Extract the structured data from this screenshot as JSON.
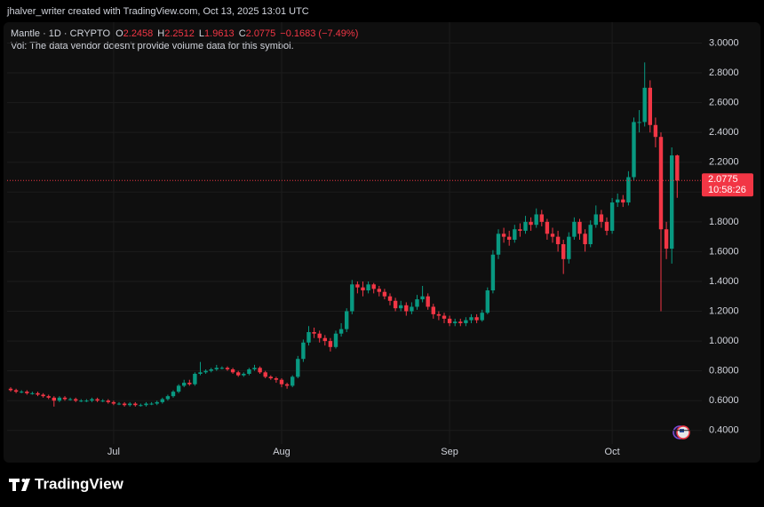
{
  "header": {
    "credit": "jhalver_writer created with TradingView.com, Oct 13, 2025 13:01 UTC"
  },
  "chart_data": {
    "type": "candlestick",
    "symbol": "Mantle · 1D · CRYPTO",
    "legend_labels": [
      "O",
      "H",
      "L",
      "C"
    ],
    "change_label": "−0.1683 (−7.49%)",
    "note": "Vol: The data vendor doesn't provide volume data for this symbol.",
    "countdown": "10:58:26",
    "categories": [
      null,
      null,
      null,
      null,
      null,
      null,
      null,
      null,
      null,
      null,
      null,
      null,
      null,
      null,
      null,
      null,
      null,
      null,
      null,
      "Jul",
      null,
      null,
      null,
      null,
      null,
      null,
      null,
      null,
      null,
      null,
      null,
      null,
      null,
      null,
      null,
      null,
      null,
      null,
      null,
      null,
      null,
      null,
      null,
      null,
      null,
      null,
      null,
      null,
      null,
      null,
      "Aug",
      null,
      null,
      null,
      null,
      null,
      null,
      null,
      null,
      null,
      null,
      null,
      null,
      null,
      null,
      null,
      null,
      null,
      null,
      null,
      null,
      null,
      null,
      null,
      null,
      null,
      null,
      null,
      null,
      null,
      null,
      "Sep",
      null,
      null,
      null,
      null,
      null,
      null,
      null,
      null,
      null,
      null,
      null,
      null,
      null,
      null,
      null,
      null,
      null,
      null,
      null,
      null,
      null,
      null,
      null,
      null,
      null,
      null,
      null,
      null,
      null,
      "Oct",
      null,
      null,
      null,
      null,
      null,
      null,
      null,
      null,
      null,
      null,
      null,
      null
    ],
    "open": [
      0.68,
      0.67,
      0.66,
      0.66,
      0.65,
      0.65,
      0.64,
      0.63,
      0.62,
      0.6,
      0.62,
      0.61,
      0.61,
      0.6,
      0.6,
      0.6,
      0.61,
      0.6,
      0.6,
      0.59,
      0.58,
      0.58,
      0.57,
      0.58,
      0.57,
      0.57,
      0.58,
      0.58,
      0.59,
      0.61,
      0.63,
      0.66,
      0.7,
      0.72,
      0.71,
      0.78,
      0.79,
      0.8,
      0.81,
      0.82,
      0.82,
      0.81,
      0.79,
      0.77,
      0.78,
      0.81,
      0.82,
      0.79,
      0.76,
      0.75,
      0.74,
      0.71,
      0.7,
      0.76,
      0.88,
      0.99,
      1.06,
      1.05,
      1.02,
      1.0,
      0.96,
      1.05,
      1.08,
      1.2,
      1.38,
      1.36,
      1.34,
      1.38,
      1.35,
      1.33,
      1.3,
      1.27,
      1.22,
      1.24,
      1.2,
      1.23,
      1.28,
      1.3,
      1.23,
      1.18,
      1.17,
      1.15,
      1.12,
      1.13,
      1.12,
      1.14,
      1.16,
      1.14,
      1.19,
      1.34,
      1.58,
      1.72,
      1.7,
      1.68,
      1.75,
      1.74,
      1.8,
      1.78,
      1.85,
      1.8,
      1.72,
      1.7,
      1.65,
      1.55,
      1.7,
      1.8,
      1.72,
      1.65,
      1.78,
      1.85,
      1.8,
      1.74,
      1.93,
      1.95,
      1.93,
      2.1,
      2.47,
      2.47,
      2.7,
      2.45,
      2.37,
      1.75,
      1.62,
      2.2458
    ],
    "high": [
      0.69,
      0.68,
      0.67,
      0.67,
      0.66,
      0.66,
      0.65,
      0.64,
      0.63,
      0.63,
      0.63,
      0.62,
      0.62,
      0.61,
      0.61,
      0.62,
      0.62,
      0.61,
      0.61,
      0.6,
      0.59,
      0.59,
      0.59,
      0.59,
      0.58,
      0.59,
      0.59,
      0.6,
      0.62,
      0.64,
      0.67,
      0.71,
      0.74,
      0.74,
      0.79,
      0.86,
      0.81,
      0.82,
      0.84,
      0.83,
      0.83,
      0.82,
      0.8,
      0.79,
      0.82,
      0.84,
      0.83,
      0.8,
      0.77,
      0.76,
      0.75,
      0.72,
      0.77,
      0.9,
      1.01,
      1.1,
      1.09,
      1.07,
      1.04,
      1.02,
      1.07,
      1.12,
      1.22,
      1.41,
      1.4,
      1.4,
      1.4,
      1.39,
      1.37,
      1.35,
      1.32,
      1.29,
      1.27,
      1.26,
      1.26,
      1.31,
      1.37,
      1.32,
      1.25,
      1.2,
      1.19,
      1.17,
      1.15,
      1.15,
      1.16,
      1.18,
      1.18,
      1.21,
      1.36,
      1.61,
      1.75,
      1.76,
      1.74,
      1.78,
      1.79,
      1.84,
      1.83,
      1.89,
      1.88,
      1.82,
      1.76,
      1.74,
      1.68,
      1.73,
      1.83,
      1.82,
      1.75,
      1.81,
      1.91,
      1.88,
      1.83,
      1.96,
      1.99,
      1.98,
      2.14,
      2.5,
      2.55,
      2.87,
      2.75,
      2.5,
      2.4,
      1.8,
      2.3,
      2.2512
    ],
    "low": [
      0.66,
      0.65,
      0.65,
      0.64,
      0.64,
      0.63,
      0.62,
      0.61,
      0.56,
      0.59,
      0.6,
      0.6,
      0.59,
      0.59,
      0.59,
      0.59,
      0.59,
      0.59,
      0.58,
      0.57,
      0.57,
      0.56,
      0.56,
      0.56,
      0.56,
      0.56,
      0.57,
      0.57,
      0.58,
      0.6,
      0.62,
      0.65,
      0.69,
      0.7,
      0.7,
      0.77,
      0.78,
      0.79,
      0.8,
      0.81,
      0.8,
      0.78,
      0.76,
      0.76,
      0.77,
      0.8,
      0.78,
      0.75,
      0.74,
      0.72,
      0.69,
      0.68,
      0.69,
      0.75,
      0.86,
      0.97,
      1.02,
      0.99,
      0.97,
      0.93,
      0.95,
      1.03,
      1.06,
      1.18,
      1.32,
      1.3,
      1.32,
      1.32,
      1.3,
      1.28,
      1.24,
      1.2,
      1.2,
      1.17,
      1.18,
      1.21,
      1.26,
      1.21,
      1.15,
      1.14,
      1.12,
      1.1,
      1.1,
      1.1,
      1.1,
      1.12,
      1.12,
      1.13,
      1.18,
      1.32,
      1.55,
      1.66,
      1.64,
      1.66,
      1.7,
      1.72,
      1.74,
      1.76,
      1.77,
      1.68,
      1.66,
      1.6,
      1.45,
      1.52,
      1.68,
      1.68,
      1.6,
      1.63,
      1.76,
      1.76,
      1.71,
      1.72,
      1.9,
      1.9,
      1.91,
      2.08,
      2.4,
      2.44,
      2.4,
      2.3,
      1.2,
      1.55,
      1.52,
      1.9613
    ],
    "close": [
      0.67,
      0.66,
      0.66,
      0.65,
      0.65,
      0.64,
      0.63,
      0.62,
      0.6,
      0.62,
      0.61,
      0.61,
      0.6,
      0.6,
      0.6,
      0.61,
      0.6,
      0.6,
      0.59,
      0.58,
      0.58,
      0.57,
      0.58,
      0.57,
      0.57,
      0.58,
      0.58,
      0.59,
      0.61,
      0.63,
      0.66,
      0.7,
      0.72,
      0.71,
      0.78,
      0.79,
      0.8,
      0.81,
      0.82,
      0.82,
      0.81,
      0.79,
      0.77,
      0.78,
      0.81,
      0.82,
      0.79,
      0.76,
      0.75,
      0.74,
      0.71,
      0.7,
      0.76,
      0.88,
      0.99,
      1.06,
      1.05,
      1.02,
      1.0,
      0.96,
      1.05,
      1.08,
      1.2,
      1.38,
      1.36,
      1.34,
      1.38,
      1.35,
      1.33,
      1.3,
      1.27,
      1.22,
      1.24,
      1.2,
      1.23,
      1.28,
      1.3,
      1.23,
      1.18,
      1.17,
      1.15,
      1.12,
      1.13,
      1.12,
      1.14,
      1.16,
      1.14,
      1.19,
      1.34,
      1.58,
      1.72,
      1.7,
      1.68,
      1.75,
      1.74,
      1.8,
      1.78,
      1.85,
      1.8,
      1.72,
      1.7,
      1.65,
      1.55,
      1.7,
      1.8,
      1.72,
      1.65,
      1.78,
      1.85,
      1.8,
      1.74,
      1.93,
      1.95,
      1.93,
      2.1,
      2.47,
      2.47,
      2.7,
      2.45,
      2.37,
      1.75,
      1.62,
      2.2458,
      2.0775
    ],
    "up_color": "#089981",
    "down_color": "#f23645",
    "ylim": [
      0.19,
      3.14
    ],
    "yticks": [
      {
        "value": 0.4,
        "label": "0.4000"
      },
      {
        "value": 0.6,
        "label": "0.6000"
      },
      {
        "value": 0.8,
        "label": "0.8000"
      },
      {
        "value": 1,
        "label": "1.0000"
      },
      {
        "value": 1.2,
        "label": "1.2000"
      },
      {
        "value": 1.4,
        "label": "1.4000"
      },
      {
        "value": 1.6,
        "label": "1.6000"
      },
      {
        "value": 1.8,
        "label": "1.8000"
      },
      {
        "value": 2,
        "label": "2.0000"
      },
      {
        "value": 2.2,
        "label": "2.2000"
      },
      {
        "value": 2.4,
        "label": "2.4000"
      },
      {
        "value": 2.6,
        "label": "2.6000"
      },
      {
        "value": 2.8,
        "label": "2.8000"
      },
      {
        "value": 3,
        "label": "3.0000"
      }
    ],
    "grid": true
  },
  "footer": {
    "logo": "TradingView"
  }
}
